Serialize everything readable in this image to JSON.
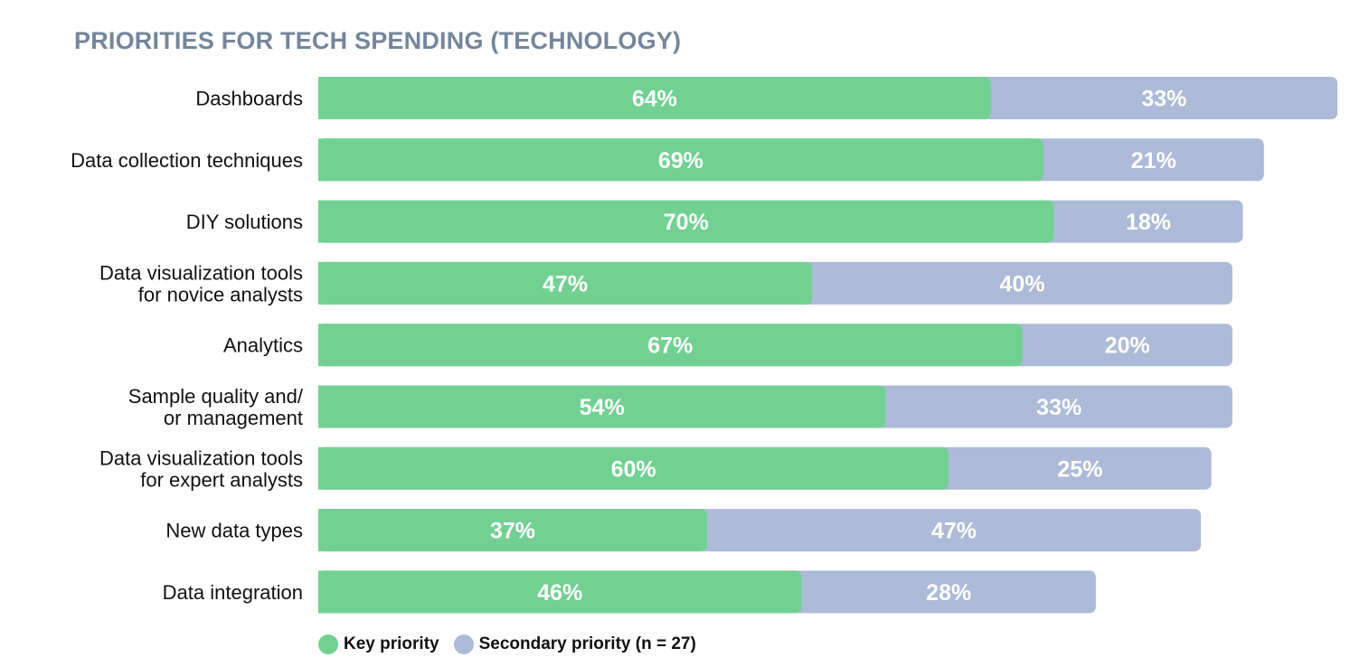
{
  "chart_data": {
    "type": "bar",
    "orientation": "horizontal",
    "stacked": true,
    "title": "PRIORITIES FOR TECH SPENDING (TECHNOLOGY)",
    "categories": [
      "Dashboards",
      "Data collection techniques",
      "DIY solutions",
      "Data visualization tools for novice analysts",
      "Analytics",
      "Sample quality and/ or management",
      "Data visualization tools for expert analysts",
      "New data types",
      "Data integration"
    ],
    "category_lines": [
      [
        "Dashboards"
      ],
      [
        "Data collection techniques"
      ],
      [
        "DIY solutions"
      ],
      [
        "Data visualization tools",
        "for novice analysts"
      ],
      [
        "Analytics"
      ],
      [
        "Sample quality and/",
        "or management"
      ],
      [
        "Data visualization tools",
        "for expert analysts"
      ],
      [
        "New data types"
      ],
      [
        "Data integration"
      ]
    ],
    "series": [
      {
        "name": "Key priority",
        "color": "#72d192",
        "values": [
          64,
          69,
          70,
          47,
          67,
          54,
          60,
          37,
          46
        ],
        "labels": [
          "64%",
          "69%",
          "70%",
          "47%",
          "67%",
          "54%",
          "60%",
          "37%",
          "46%"
        ]
      },
      {
        "name": "Secondary priority (n = 27)",
        "color": "#adbad8",
        "values": [
          33,
          21,
          18,
          40,
          20,
          33,
          25,
          47,
          28
        ],
        "labels": [
          "33%",
          "21%",
          "18%",
          "40%",
          "20%",
          "33%",
          "25%",
          "47%",
          "28%"
        ]
      }
    ],
    "xlim": [
      0,
      100
    ],
    "grid": false,
    "legend": "bottom-left"
  }
}
